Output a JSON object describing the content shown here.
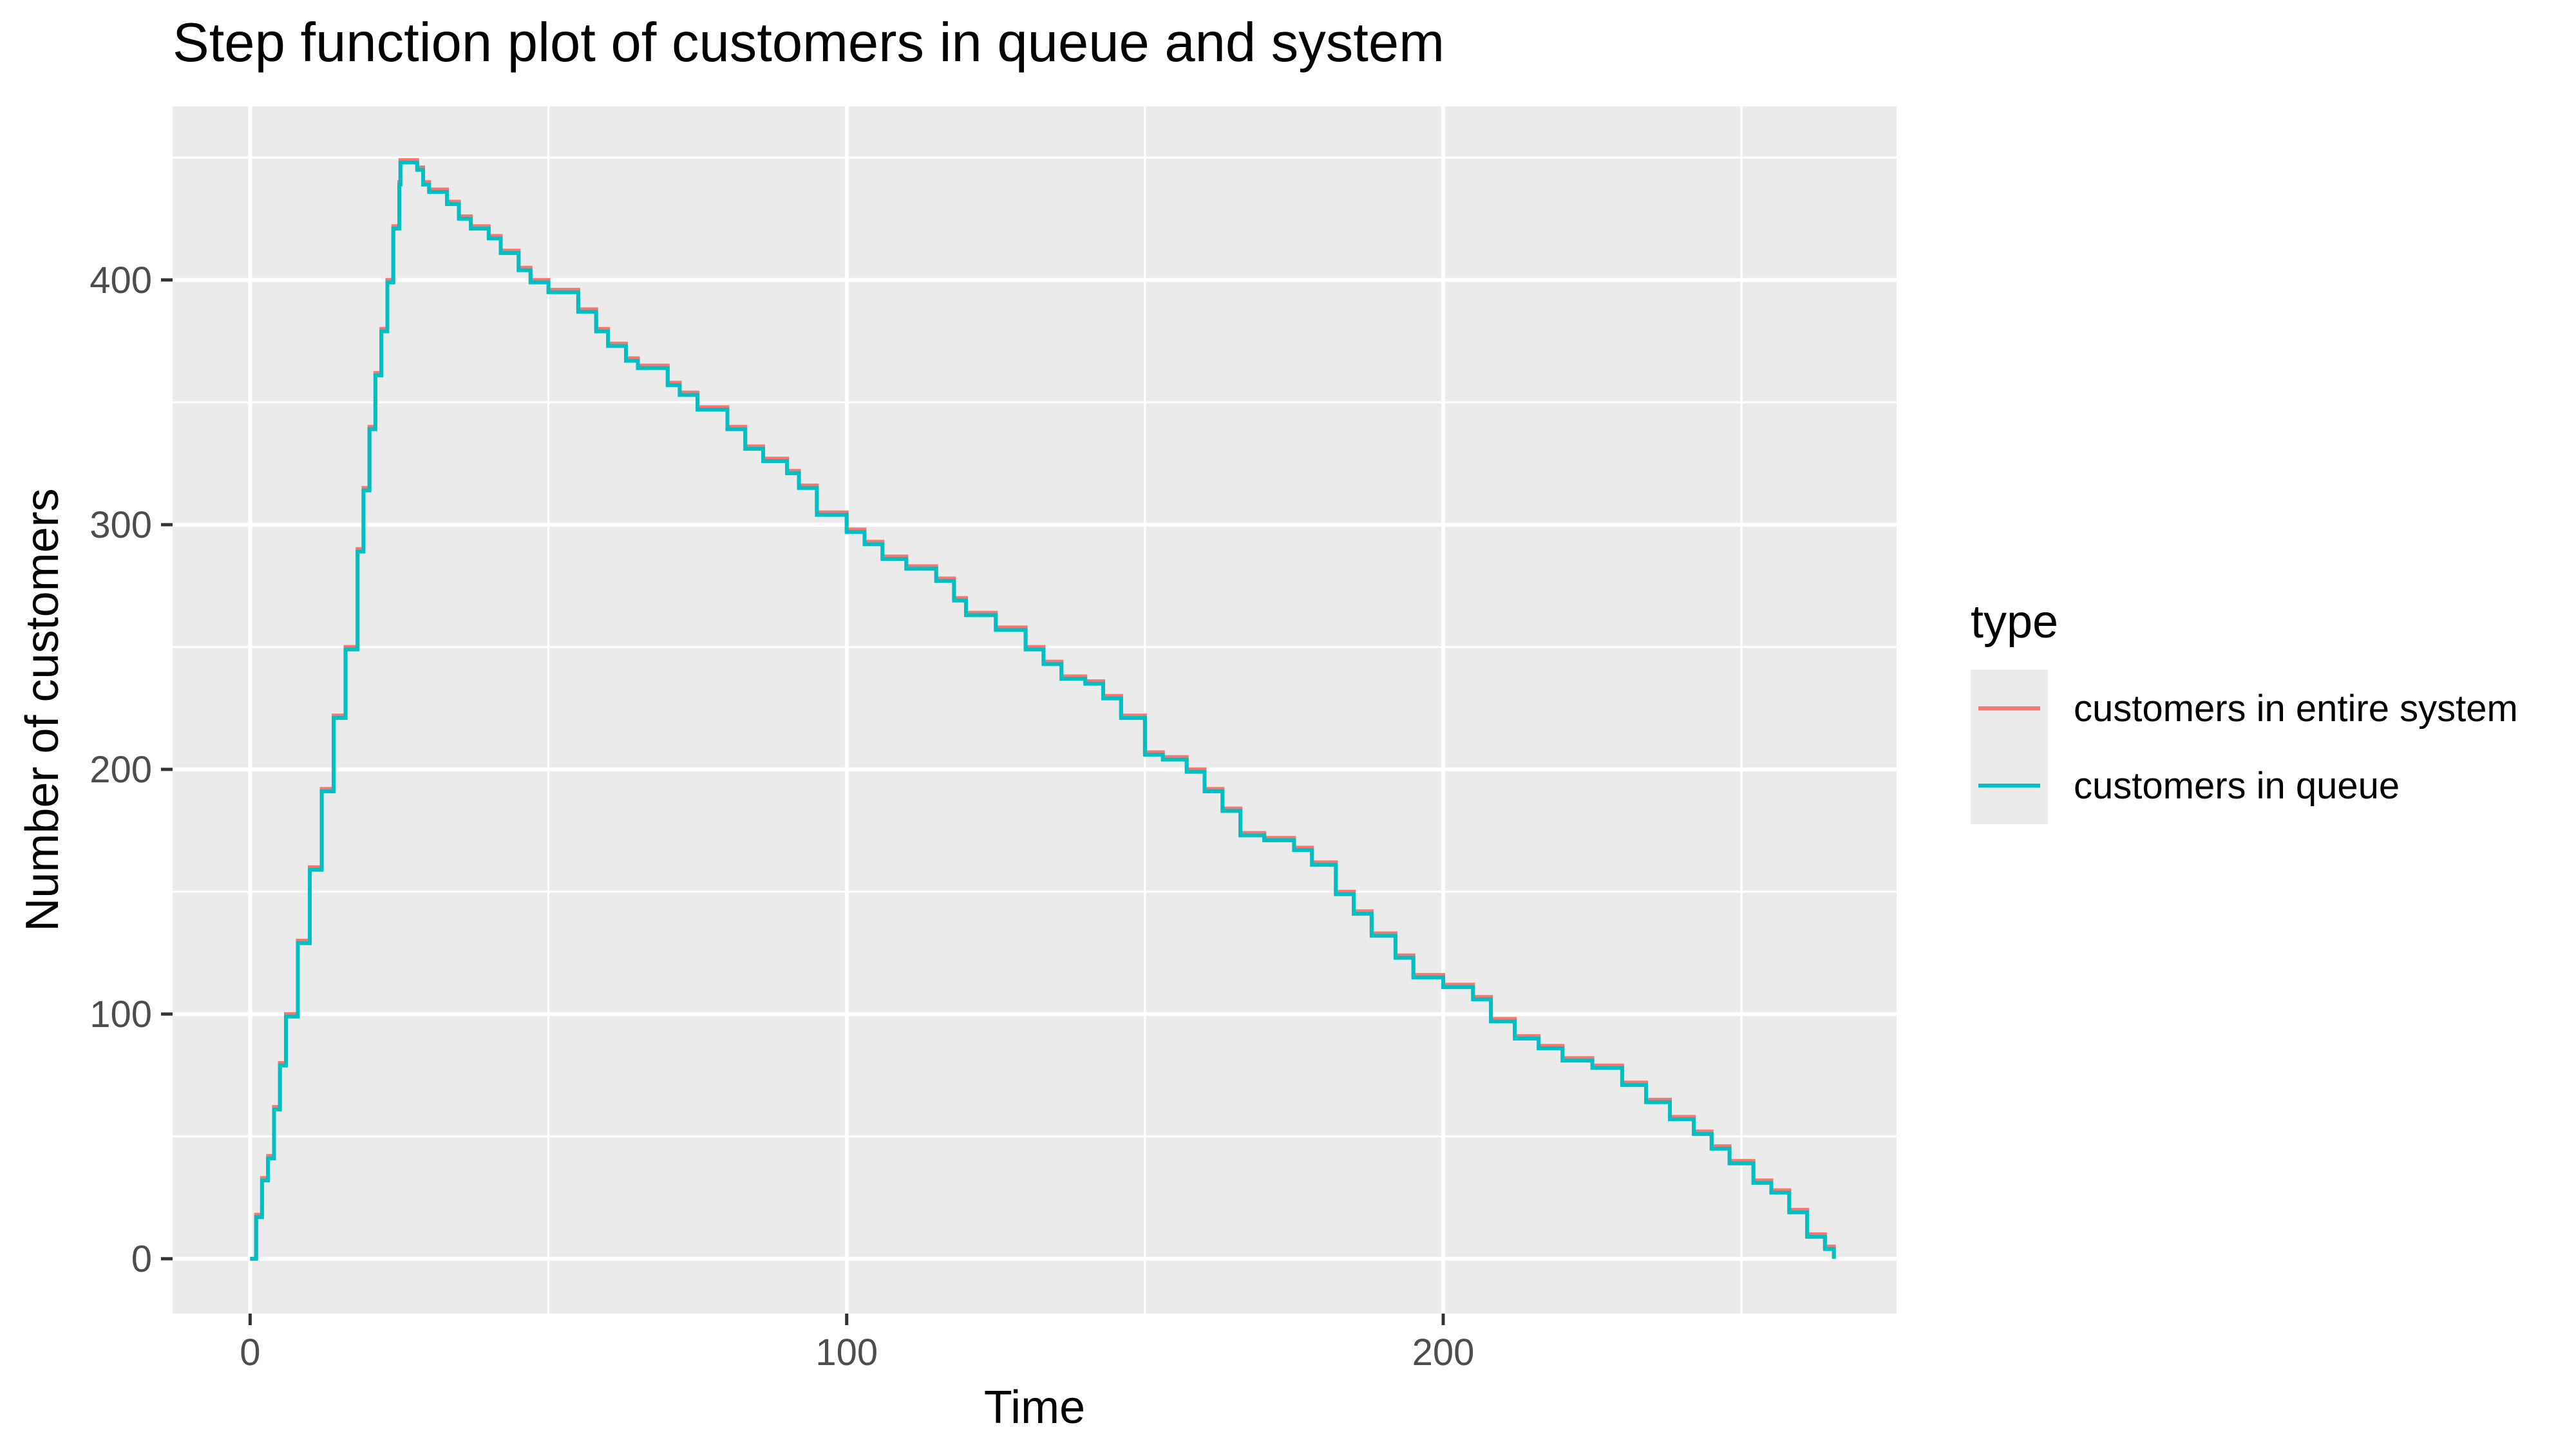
{
  "chart_data": {
    "type": "line",
    "step": true,
    "title": "Step function plot of customers in queue and system",
    "xlabel": "Time",
    "ylabel": "Number of customers",
    "xlim": [
      -13,
      276
    ],
    "ylim": [
      -22.4,
      471
    ],
    "x_ticks": [
      0,
      100,
      200
    ],
    "x_minor_ticks": [
      50,
      150,
      250
    ],
    "y_ticks": [
      0,
      100,
      200,
      300,
      400
    ],
    "y_minor_ticks": [
      50,
      150,
      250,
      350,
      450
    ],
    "grid": true,
    "legend": {
      "title": "type",
      "position": "right"
    },
    "series": [
      {
        "name": "customers in entire system",
        "color": "#F8766D",
        "points": [
          [
            0,
            0
          ],
          [
            1,
            18
          ],
          [
            2,
            33
          ],
          [
            3,
            42
          ],
          [
            4,
            62
          ],
          [
            5,
            80
          ],
          [
            6,
            100
          ],
          [
            8,
            130
          ],
          [
            10,
            160
          ],
          [
            12,
            192
          ],
          [
            14,
            222
          ],
          [
            16,
            250
          ],
          [
            18,
            290
          ],
          [
            19,
            315
          ],
          [
            20,
            340
          ],
          [
            21,
            362
          ],
          [
            22,
            380
          ],
          [
            23,
            400
          ],
          [
            24,
            422
          ],
          [
            25,
            440
          ],
          [
            25.2,
            449
          ],
          [
            27,
            449
          ],
          [
            28,
            446
          ],
          [
            29,
            440
          ],
          [
            30,
            437
          ],
          [
            33,
            432
          ],
          [
            35,
            426
          ],
          [
            37,
            422
          ],
          [
            40,
            418
          ],
          [
            42,
            412
          ],
          [
            45,
            405
          ],
          [
            47,
            400
          ],
          [
            50,
            396
          ],
          [
            55,
            388
          ],
          [
            58,
            380
          ],
          [
            60,
            374
          ],
          [
            63,
            368
          ],
          [
            65,
            365
          ],
          [
            70,
            358
          ],
          [
            72,
            354
          ],
          [
            75,
            348
          ],
          [
            80,
            340
          ],
          [
            83,
            332
          ],
          [
            86,
            327
          ],
          [
            90,
            322
          ],
          [
            92,
            316
          ],
          [
            95,
            305
          ],
          [
            100,
            298
          ],
          [
            103,
            293
          ],
          [
            106,
            287
          ],
          [
            110,
            283
          ],
          [
            115,
            278
          ],
          [
            118,
            270
          ],
          [
            120,
            264
          ],
          [
            125,
            258
          ],
          [
            130,
            250
          ],
          [
            133,
            244
          ],
          [
            136,
            238
          ],
          [
            140,
            236
          ],
          [
            143,
            230
          ],
          [
            146,
            222
          ],
          [
            150,
            207
          ],
          [
            153,
            205
          ],
          [
            157,
            200
          ],
          [
            160,
            192
          ],
          [
            163,
            184
          ],
          [
            166,
            174
          ],
          [
            170,
            172
          ],
          [
            175,
            168
          ],
          [
            178,
            162
          ],
          [
            182,
            150
          ],
          [
            185,
            142
          ],
          [
            188,
            133
          ],
          [
            192,
            124
          ],
          [
            195,
            116
          ],
          [
            200,
            112
          ],
          [
            205,
            107
          ],
          [
            208,
            98
          ],
          [
            212,
            91
          ],
          [
            216,
            87
          ],
          [
            220,
            82
          ],
          [
            225,
            79
          ],
          [
            230,
            72
          ],
          [
            234,
            65
          ],
          [
            238,
            58
          ],
          [
            242,
            52
          ],
          [
            245,
            46
          ],
          [
            248,
            40
          ],
          [
            252,
            32
          ],
          [
            255,
            28
          ],
          [
            258,
            20
          ],
          [
            261,
            10
          ],
          [
            264,
            5
          ],
          [
            265.5,
            0
          ]
        ]
      },
      {
        "name": "customers in queue",
        "color": "#00BFC4",
        "points": [
          [
            0,
            0
          ],
          [
            1,
            17
          ],
          [
            2,
            32
          ],
          [
            3,
            41
          ],
          [
            4,
            61
          ],
          [
            5,
            79
          ],
          [
            6,
            99
          ],
          [
            8,
            129
          ],
          [
            10,
            159
          ],
          [
            12,
            191
          ],
          [
            14,
            221
          ],
          [
            16,
            249
          ],
          [
            18,
            289
          ],
          [
            19,
            314
          ],
          [
            20,
            339
          ],
          [
            21,
            361
          ],
          [
            22,
            379
          ],
          [
            23,
            399
          ],
          [
            24,
            421
          ],
          [
            25,
            439
          ],
          [
            25.2,
            448
          ],
          [
            27,
            448
          ],
          [
            28,
            445
          ],
          [
            29,
            439
          ],
          [
            30,
            436
          ],
          [
            33,
            431
          ],
          [
            35,
            425
          ],
          [
            37,
            421
          ],
          [
            40,
            417
          ],
          [
            42,
            411
          ],
          [
            45,
            404
          ],
          [
            47,
            399
          ],
          [
            50,
            395
          ],
          [
            55,
            387
          ],
          [
            58,
            379
          ],
          [
            60,
            373
          ],
          [
            63,
            367
          ],
          [
            65,
            364
          ],
          [
            70,
            357
          ],
          [
            72,
            353
          ],
          [
            75,
            347
          ],
          [
            80,
            339
          ],
          [
            83,
            331
          ],
          [
            86,
            326
          ],
          [
            90,
            321
          ],
          [
            92,
            315
          ],
          [
            95,
            304
          ],
          [
            100,
            297
          ],
          [
            103,
            292
          ],
          [
            106,
            286
          ],
          [
            110,
            282
          ],
          [
            115,
            277
          ],
          [
            118,
            269
          ],
          [
            120,
            263
          ],
          [
            125,
            257
          ],
          [
            130,
            249
          ],
          [
            133,
            243
          ],
          [
            136,
            237
          ],
          [
            140,
            235
          ],
          [
            143,
            229
          ],
          [
            146,
            221
          ],
          [
            150,
            206
          ],
          [
            153,
            204
          ],
          [
            157,
            199
          ],
          [
            160,
            191
          ],
          [
            163,
            183
          ],
          [
            166,
            173
          ],
          [
            170,
            171
          ],
          [
            175,
            167
          ],
          [
            178,
            161
          ],
          [
            182,
            149
          ],
          [
            185,
            141
          ],
          [
            188,
            132
          ],
          [
            192,
            123
          ],
          [
            195,
            115
          ],
          [
            200,
            111
          ],
          [
            205,
            106
          ],
          [
            208,
            97
          ],
          [
            212,
            90
          ],
          [
            216,
            86
          ],
          [
            220,
            81
          ],
          [
            225,
            78
          ],
          [
            230,
            71
          ],
          [
            234,
            64
          ],
          [
            238,
            57
          ],
          [
            242,
            51
          ],
          [
            245,
            45
          ],
          [
            248,
            39
          ],
          [
            252,
            31
          ],
          [
            255,
            27
          ],
          [
            258,
            19
          ],
          [
            261,
            9
          ],
          [
            264,
            4
          ],
          [
            265.5,
            0
          ]
        ]
      }
    ]
  }
}
